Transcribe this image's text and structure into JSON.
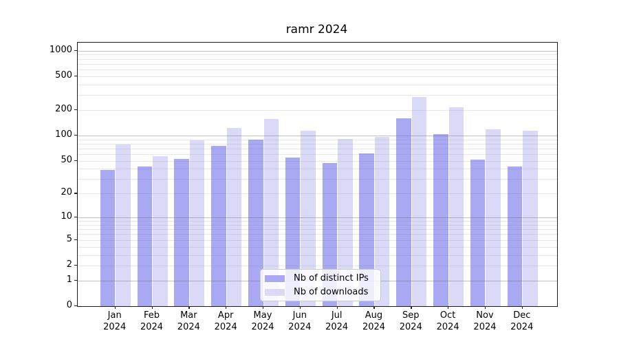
{
  "chart_data": {
    "type": "bar",
    "title": "ramr 2024",
    "categories": [
      "Jan 2024",
      "Feb 2024",
      "Mar 2024",
      "Apr 2024",
      "May 2024",
      "Jun 2024",
      "Jul 2024",
      "Aug 2024",
      "Sep 2024",
      "Oct 2024",
      "Nov 2024",
      "Dec 2024"
    ],
    "series": [
      {
        "name": "Nb of distinct IPs",
        "color": "#a8a8f3",
        "values": [
          39,
          43,
          53,
          75,
          89,
          55,
          47,
          61,
          160,
          103,
          52,
          43
        ]
      },
      {
        "name": "Nb of downloads",
        "color": "#dadaf8",
        "values": [
          78,
          57,
          87,
          122,
          158,
          113,
          91,
          97,
          285,
          217,
          118,
          113
        ]
      }
    ],
    "yscale": "log1p",
    "yticks": [
      0,
      1,
      2,
      5,
      10,
      20,
      50,
      100,
      200,
      500,
      1000
    ],
    "major_grid_values": [
      1,
      10,
      100,
      1000
    ],
    "ylim": [
      0,
      1244
    ],
    "grid": "major and minor horizontal gridlines",
    "legend_position": "lower center",
    "xlabel": "",
    "ylabel": ""
  }
}
